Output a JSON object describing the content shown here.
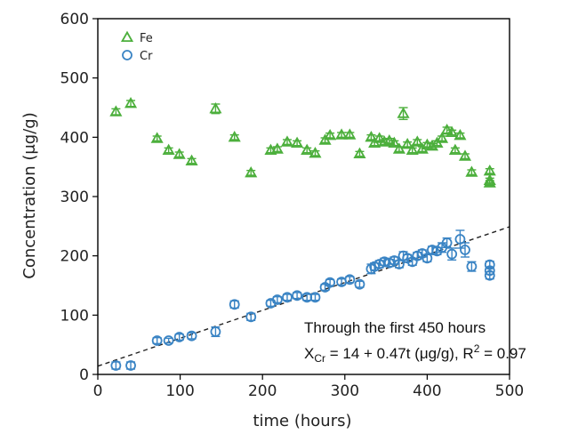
{
  "chart_data": {
    "type": "scatter",
    "xlabel": "time (hours)",
    "ylabel": "Concentration (μg/g)",
    "xlim": [
      0,
      500
    ],
    "ylim": [
      0,
      600
    ],
    "xticks": [
      "0",
      "100",
      "200",
      "300",
      "400",
      "500"
    ],
    "yticks": [
      "0",
      "100",
      "200",
      "300",
      "400",
      "500",
      "600"
    ],
    "legend_position": "top-left",
    "series": [
      {
        "name": "Fe",
        "marker": "triangle",
        "color": "#4caf3c",
        "points": [
          {
            "x": 22,
            "y": 443,
            "err": 5
          },
          {
            "x": 40,
            "y": 457,
            "err": 5
          },
          {
            "x": 72,
            "y": 398,
            "err": 4
          },
          {
            "x": 86,
            "y": 378,
            "err": 4
          },
          {
            "x": 99,
            "y": 371,
            "err": 4
          },
          {
            "x": 114,
            "y": 360,
            "err": 4
          },
          {
            "x": 143,
            "y": 448,
            "err": 8
          },
          {
            "x": 166,
            "y": 400,
            "err": 4
          },
          {
            "x": 186,
            "y": 340,
            "err": 4
          },
          {
            "x": 210,
            "y": 378,
            "err": 4
          },
          {
            "x": 218,
            "y": 380,
            "err": 4
          },
          {
            "x": 230,
            "y": 392,
            "err": 4
          },
          {
            "x": 242,
            "y": 390,
            "err": 4
          },
          {
            "x": 254,
            "y": 378,
            "err": 4
          },
          {
            "x": 264,
            "y": 373,
            "err": 4
          },
          {
            "x": 276,
            "y": 395,
            "err": 4
          },
          {
            "x": 282,
            "y": 403,
            "err": 4
          },
          {
            "x": 296,
            "y": 404,
            "err": 4
          },
          {
            "x": 306,
            "y": 404,
            "err": 4
          },
          {
            "x": 318,
            "y": 372,
            "err": 4
          },
          {
            "x": 332,
            "y": 400,
            "err": 4
          },
          {
            "x": 336,
            "y": 390,
            "err": 4
          },
          {
            "x": 342,
            "y": 398,
            "err": 4
          },
          {
            "x": 348,
            "y": 392,
            "err": 4
          },
          {
            "x": 354,
            "y": 394,
            "err": 4
          },
          {
            "x": 360,
            "y": 390,
            "err": 4
          },
          {
            "x": 366,
            "y": 380,
            "err": 4
          },
          {
            "x": 371,
            "y": 440,
            "err": 10
          },
          {
            "x": 376,
            "y": 388,
            "err": 4
          },
          {
            "x": 382,
            "y": 378,
            "err": 4
          },
          {
            "x": 388,
            "y": 392,
            "err": 4
          },
          {
            "x": 394,
            "y": 380,
            "err": 4
          },
          {
            "x": 400,
            "y": 387,
            "err": 4
          },
          {
            "x": 406,
            "y": 385,
            "err": 4
          },
          {
            "x": 412,
            "y": 390,
            "err": 4
          },
          {
            "x": 418,
            "y": 398,
            "err": 4
          },
          {
            "x": 424,
            "y": 412,
            "err": 5
          },
          {
            "x": 430,
            "y": 408,
            "err": 4
          },
          {
            "x": 434,
            "y": 378,
            "err": 4
          },
          {
            "x": 440,
            "y": 403,
            "err": 4
          },
          {
            "x": 446,
            "y": 368,
            "err": 4
          },
          {
            "x": 454,
            "y": 341,
            "err": 4
          },
          {
            "x": 476,
            "y": 343,
            "err": 4
          },
          {
            "x": 476,
            "y": 327,
            "err": 4
          },
          {
            "x": 476,
            "y": 323,
            "err": 4
          }
        ]
      },
      {
        "name": "Cr",
        "marker": "circle",
        "color": "#3a84c4",
        "points": [
          {
            "x": 22,
            "y": 15,
            "err": 6
          },
          {
            "x": 40,
            "y": 15,
            "err": 6
          },
          {
            "x": 72,
            "y": 57,
            "err": 5
          },
          {
            "x": 86,
            "y": 57,
            "err": 4
          },
          {
            "x": 99,
            "y": 63,
            "err": 5
          },
          {
            "x": 114,
            "y": 65,
            "err": 5
          },
          {
            "x": 143,
            "y": 72,
            "err": 8
          },
          {
            "x": 166,
            "y": 118,
            "err": 6
          },
          {
            "x": 186,
            "y": 97,
            "err": 6
          },
          {
            "x": 210,
            "y": 120,
            "err": 5
          },
          {
            "x": 218,
            "y": 126,
            "err": 5
          },
          {
            "x": 230,
            "y": 130,
            "err": 5
          },
          {
            "x": 242,
            "y": 133,
            "err": 5
          },
          {
            "x": 254,
            "y": 130,
            "err": 5
          },
          {
            "x": 264,
            "y": 130,
            "err": 5
          },
          {
            "x": 276,
            "y": 147,
            "err": 5
          },
          {
            "x": 282,
            "y": 155,
            "err": 5
          },
          {
            "x": 296,
            "y": 156,
            "err": 5
          },
          {
            "x": 306,
            "y": 160,
            "err": 5
          },
          {
            "x": 318,
            "y": 152,
            "err": 5
          },
          {
            "x": 332,
            "y": 178,
            "err": 8
          },
          {
            "x": 336,
            "y": 182,
            "err": 6
          },
          {
            "x": 342,
            "y": 186,
            "err": 6
          },
          {
            "x": 348,
            "y": 190,
            "err": 6
          },
          {
            "x": 354,
            "y": 188,
            "err": 6
          },
          {
            "x": 360,
            "y": 192,
            "err": 6
          },
          {
            "x": 366,
            "y": 186,
            "err": 6
          },
          {
            "x": 371,
            "y": 200,
            "err": 7
          },
          {
            "x": 376,
            "y": 196,
            "err": 6
          },
          {
            "x": 382,
            "y": 190,
            "err": 6
          },
          {
            "x": 388,
            "y": 200,
            "err": 6
          },
          {
            "x": 394,
            "y": 204,
            "err": 6
          },
          {
            "x": 400,
            "y": 196,
            "err": 6
          },
          {
            "x": 406,
            "y": 210,
            "err": 6
          },
          {
            "x": 412,
            "y": 208,
            "err": 6
          },
          {
            "x": 418,
            "y": 214,
            "err": 8
          },
          {
            "x": 424,
            "y": 222,
            "err": 8
          },
          {
            "x": 430,
            "y": 203,
            "err": 10
          },
          {
            "x": 440,
            "y": 228,
            "err": 15
          },
          {
            "x": 446,
            "y": 210,
            "err": 12
          },
          {
            "x": 454,
            "y": 182,
            "err": 8
          },
          {
            "x": 476,
            "y": 185,
            "err": 6
          },
          {
            "x": 476,
            "y": 175,
            "err": 6
          },
          {
            "x": 476,
            "y": 167,
            "err": 6
          }
        ]
      }
    ],
    "fit_line": {
      "name": "",
      "intercept": 14,
      "slope": 0.47,
      "x_range": [
        0,
        500
      ],
      "style": "dashed",
      "color": "#222222"
    },
    "annotations": {
      "line1": "Through the first 450 hours",
      "line2_prefix": "X",
      "line2_sub": "Cr",
      "line2_mid": " = 14 + 0.47t (μg/g), R",
      "line2_sup": "2",
      "line2_suffix": " = 0.97"
    }
  }
}
